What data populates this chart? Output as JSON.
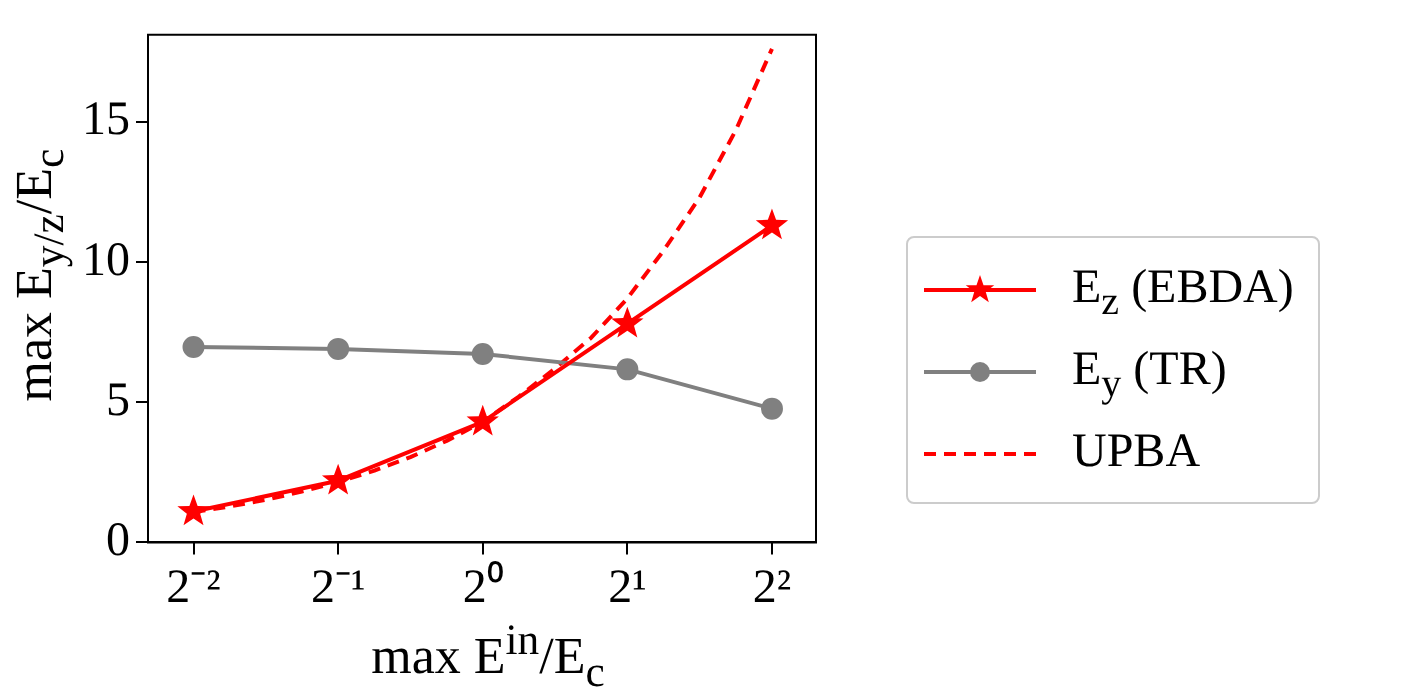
{
  "chart_data": {
    "type": "line",
    "xlabel": "max E$^{in}$/E$_{c}$",
    "ylabel": "max E$_{y/z}$/E$_{c}$",
    "log": "x",
    "grid": false,
    "legend": "right",
    "xlim": [
      0.201,
      4.94
    ],
    "xticks": [
      {
        "value": 0.25,
        "label": "2⁻²"
      },
      {
        "value": 0.5,
        "label": "2⁻¹"
      },
      {
        "value": 1,
        "label": "2⁰"
      },
      {
        "value": 2,
        "label": "2¹"
      },
      {
        "value": 4,
        "label": "2²"
      }
    ],
    "ylim": [
      0,
      18.1
    ],
    "yticks": [
      0,
      5,
      10,
      15
    ],
    "x": [
      0.25,
      0.5,
      1,
      2,
      4
    ],
    "series": [
      {
        "name": "E$_{z}$ (EBDA)",
        "color": "#ff0000",
        "marker": "star",
        "line_style": "solid",
        "values": [
          1.1,
          2.2,
          4.3,
          7.8,
          11.3
        ]
      },
      {
        "name": "E$_{y}$ (TR)",
        "color": "#808080",
        "marker": "circle",
        "line_style": "solid",
        "values": [
          6.97,
          6.9,
          6.72,
          6.17,
          4.77
        ]
      },
      {
        "name": "UPBA",
        "color": "#ff0000",
        "marker": "none",
        "line_style": "dashed",
        "x": [
          0.25,
          0.297,
          0.354,
          0.42,
          0.5,
          0.595,
          0.707,
          0.841,
          1,
          1.189,
          1.414,
          1.682,
          2,
          2.378,
          2.828,
          3.364,
          4
        ],
        "values": [
          1.08,
          1.28,
          1.52,
          1.81,
          2.15,
          2.56,
          3.04,
          3.62,
          4.3,
          5.2,
          6.2,
          7.3,
          8.7,
          10.4,
          12.3,
          14.7,
          17.6
        ]
      }
    ]
  }
}
